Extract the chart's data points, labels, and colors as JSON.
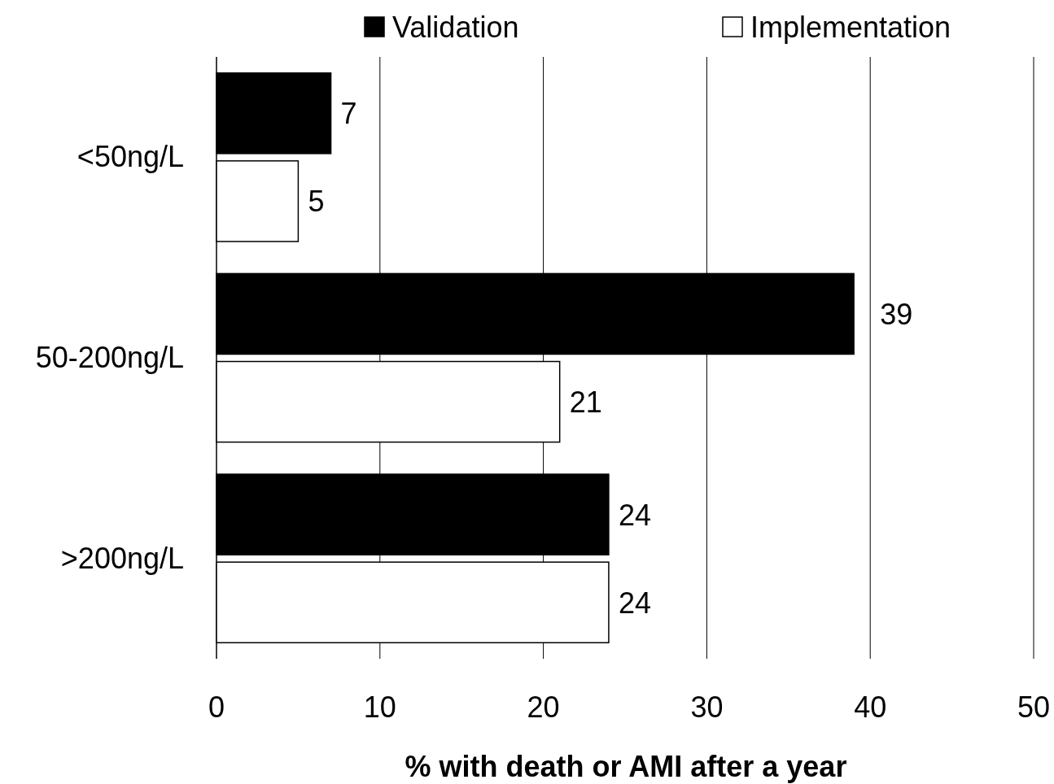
{
  "chart_data": {
    "type": "bar",
    "orientation": "horizontal",
    "xlabel": "% with death or AMI after a year",
    "categories": [
      "<50ng/L",
      "50-200ng/L",
      ">200ng/L"
    ],
    "series": [
      {
        "name": "Validation",
        "color": "#000000",
        "values": [
          7,
          39,
          24
        ]
      },
      {
        "name": "Implementation",
        "color": "#ffffff",
        "values": [
          5,
          21,
          24
        ]
      }
    ],
    "xlim": [
      0,
      50
    ],
    "xticks": [
      0,
      10,
      20,
      30,
      40,
      50
    ],
    "grid": "x",
    "legend": "top",
    "data_labels": true
  }
}
